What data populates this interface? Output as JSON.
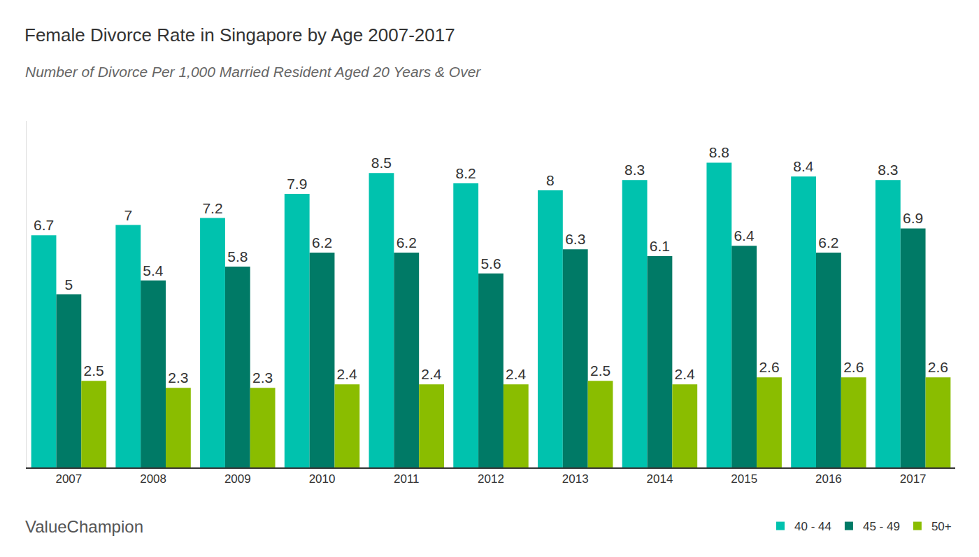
{
  "chart_data": {
    "type": "bar",
    "title": "Female Divorce Rate in Singapore by Age 2007-2017",
    "subtitle": "Number of Divorce Per 1,000 Married Resident Aged 20 Years & Over",
    "categories": [
      "2007",
      "2008",
      "2009",
      "2010",
      "2011",
      "2012",
      "2013",
      "2014",
      "2015",
      "2016",
      "2017"
    ],
    "series": [
      {
        "name": "40 - 44",
        "color": "#00c2ae",
        "values": [
          6.7,
          7,
          7.2,
          7.9,
          8.5,
          8.2,
          8,
          8.3,
          8.8,
          8.4,
          8.3
        ]
      },
      {
        "name": "45 - 49",
        "color": "#007a66",
        "values": [
          5,
          5.4,
          5.8,
          6.2,
          6.2,
          5.6,
          6.3,
          6.1,
          6.4,
          6.2,
          6.9
        ]
      },
      {
        "name": "50+",
        "color": "#8abd00",
        "values": [
          2.5,
          2.3,
          2.3,
          2.4,
          2.4,
          2.4,
          2.5,
          2.4,
          2.6,
          2.6,
          2.6
        ]
      }
    ],
    "ylim": [
      0,
      10
    ],
    "yticks": [],
    "grid": false,
    "legend": "bottom right",
    "data_labels": true,
    "tick_labels": "x",
    "annotations": [
      {
        "text": "ValueChampion"
      }
    ]
  }
}
